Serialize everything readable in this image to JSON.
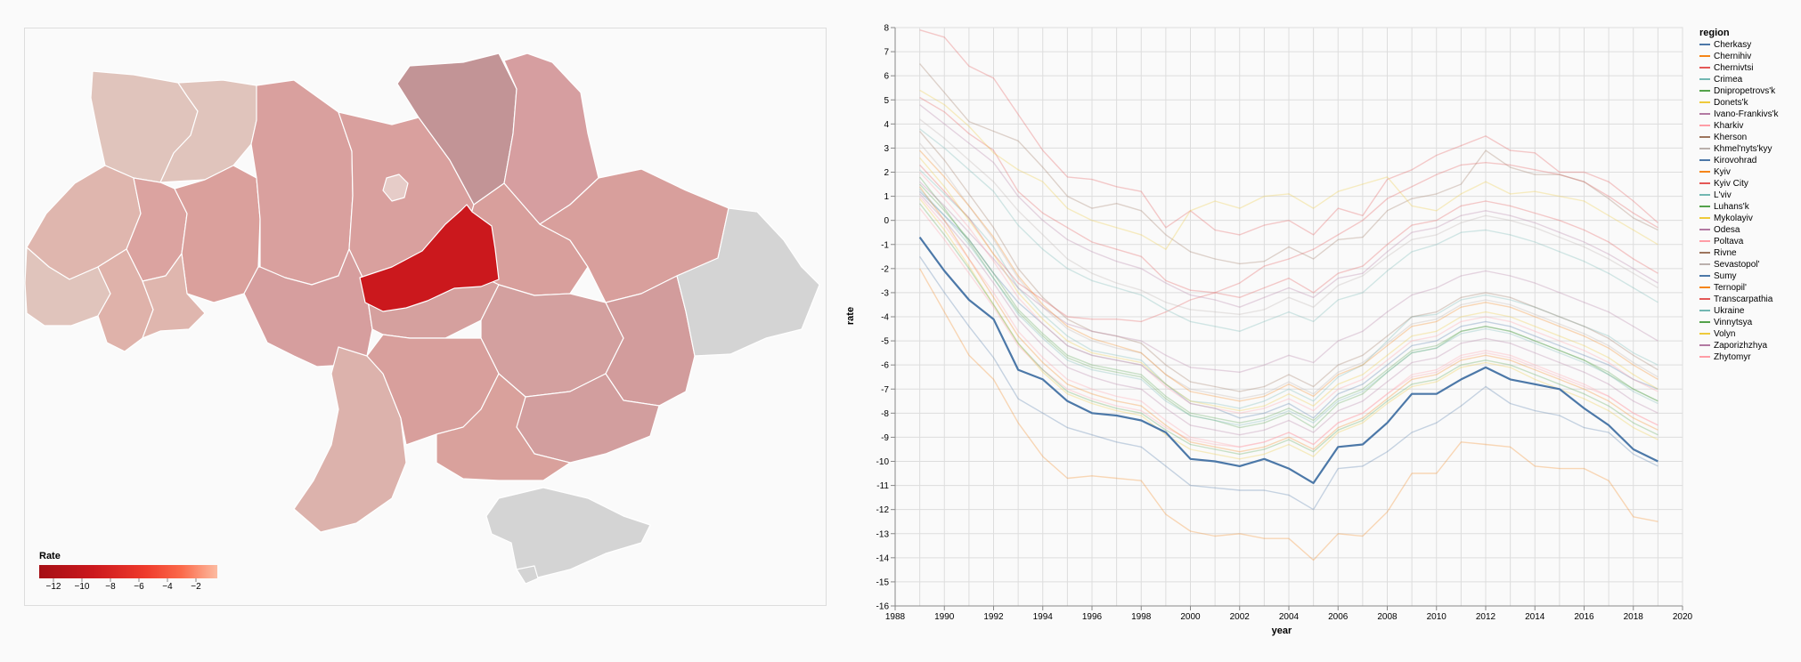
{
  "map": {
    "legend_title": "Rate",
    "legend_ticks": [
      "−12",
      "−10",
      "−8",
      "−6",
      "−4",
      "−2"
    ],
    "colors": {
      "min": "#a50f15",
      "max": "#fcbba1",
      "no_data": "#d4d4d4",
      "highlight": "#cb181d"
    }
  },
  "chart_data": {
    "type": "line",
    "xlabel": "year",
    "ylabel": "rate",
    "xlim": [
      1988,
      2020
    ],
    "ylim": [
      -16,
      8
    ],
    "x_ticks": [
      "1988",
      "1990",
      "1992",
      "1994",
      "1996",
      "1998",
      "2000",
      "2002",
      "2004",
      "2006",
      "2008",
      "2010",
      "2012",
      "2014",
      "2016",
      "2018",
      "2020"
    ],
    "y_ticks": [
      "8",
      "7",
      "6",
      "5",
      "4",
      "3",
      "2",
      "1",
      "0",
      "-1",
      "-2",
      "-3",
      "-4",
      "-5",
      "-6",
      "-7",
      "-8",
      "-9",
      "-10",
      "-11",
      "-12",
      "-13",
      "-14",
      "-15",
      "-16"
    ],
    "grid": true,
    "legend_title": "region",
    "legend_position": "right",
    "highlighted_series": "Kirovohrad",
    "x": [
      1989,
      1990,
      1991,
      1992,
      1993,
      1994,
      1995,
      1996,
      1997,
      1998,
      1999,
      2000,
      2001,
      2002,
      2003,
      2004,
      2005,
      2006,
      2007,
      2008,
      2009,
      2010,
      2011,
      2012,
      2013,
      2014,
      2015,
      2016,
      2017,
      2018,
      2019
    ],
    "series": [
      {
        "name": "Cherkasy",
        "color": "#4c78a8",
        "values": [
          1.2,
          0.2,
          -0.8,
          -2.2,
          -3.4,
          -4.3,
          -5.2,
          -5.6,
          -5.8,
          -6.0,
          -6.8,
          -7.6,
          -7.8,
          -8.2,
          -8.0,
          -7.6,
          -8.2,
          -7.2,
          -6.8,
          -6.0,
          -5.2,
          -5.0,
          -4.4,
          -4.2,
          -4.4,
          -4.8,
          -5.2,
          -5.6,
          -6.0,
          -6.6,
          -7.0
        ]
      },
      {
        "name": "Chernihiv",
        "color": "#f58518",
        "values": [
          -2.0,
          -3.8,
          -5.6,
          -6.6,
          -8.4,
          -9.8,
          -10.7,
          -10.6,
          -10.7,
          -10.8,
          -12.2,
          -12.9,
          -13.1,
          -13.0,
          -13.2,
          -13.2,
          -14.1,
          -13.0,
          -13.1,
          -12.1,
          -10.5,
          -10.5,
          -9.2,
          -9.3,
          -9.4,
          -10.2,
          -10.3,
          -10.3,
          -10.8,
          -12.3,
          -12.5
        ]
      },
      {
        "name": "Chernivtsi",
        "color": "#e45756",
        "values": [
          5.1,
          4.5,
          3.6,
          2.9,
          1.2,
          0.3,
          -0.3,
          -0.9,
          -1.2,
          -1.5,
          -2.5,
          -2.9,
          -3.0,
          -3.2,
          -2.8,
          -2.4,
          -3.0,
          -2.2,
          -1.9,
          -1.0,
          -0.2,
          0.0,
          0.6,
          0.8,
          0.6,
          0.3,
          0.0,
          -0.4,
          -0.9,
          -1.6,
          -2.2
        ]
      },
      {
        "name": "Crimea",
        "color": "#72b7b2",
        "values": [
          2.1,
          1.1,
          0.1,
          -1.1,
          -2.8,
          -3.9,
          -4.8,
          -5.4,
          -5.6,
          -5.8,
          -6.8,
          -7.5,
          -7.6,
          -7.8,
          -7.5,
          -7.0,
          -7.5,
          -6.5,
          -6.0,
          -5.0,
          -4.0,
          -3.9,
          -3.3,
          -3.1,
          -3.3,
          -3.6,
          -4.0,
          -4.4,
          -4.8,
          -5.5,
          -6.0
        ]
      },
      {
        "name": "Dnipropetrovs'k",
        "color": "#54a24b",
        "values": [
          1.8,
          0.5,
          -0.9,
          -2.4,
          -3.8,
          -4.8,
          -5.7,
          -6.1,
          -6.3,
          -6.5,
          -7.4,
          -8.1,
          -8.3,
          -8.6,
          -8.4,
          -8.0,
          -8.6,
          -7.6,
          -7.2,
          -6.3,
          -5.5,
          -5.3,
          -4.6,
          -4.4,
          -4.6,
          -5.0,
          -5.4,
          -5.8,
          -6.4,
          -7.0,
          -7.5
        ]
      },
      {
        "name": "Donets'k",
        "color": "#eeca3b",
        "values": [
          0.9,
          -0.4,
          -1.9,
          -3.5,
          -5.1,
          -6.3,
          -7.2,
          -7.6,
          -7.9,
          -8.1,
          -8.9,
          -9.5,
          -9.7,
          -9.9,
          -9.7,
          -9.3,
          -9.8,
          -8.8,
          -8.4,
          -7.6,
          -6.9,
          -6.7,
          -6.1,
          -5.9,
          -6.1,
          -6.6,
          -7.0,
          -7.4,
          -7.9,
          -8.6,
          -9.1
        ]
      },
      {
        "name": "Ivano-Frankivs'k",
        "color": "#b279a2",
        "values": [
          4.8,
          4.0,
          3.2,
          2.4,
          1.0,
          0.0,
          -0.8,
          -1.3,
          -1.7,
          -2.0,
          -2.6,
          -3.1,
          -3.3,
          -3.6,
          -3.2,
          -2.8,
          -3.2,
          -2.4,
          -2.2,
          -1.3,
          -0.5,
          -0.3,
          0.2,
          0.4,
          0.2,
          -0.1,
          -0.5,
          -0.9,
          -1.4,
          -2.0,
          -2.6
        ]
      },
      {
        "name": "Kharkiv",
        "color": "#ff9da6",
        "values": [
          0.5,
          -0.8,
          -2.2,
          -3.6,
          -5.2,
          -6.2,
          -7.0,
          -7.4,
          -7.7,
          -7.9,
          -8.6,
          -9.1,
          -9.3,
          -9.4,
          -9.2,
          -8.8,
          -9.3,
          -8.4,
          -8.0,
          -7.2,
          -6.5,
          -6.3,
          -5.7,
          -5.5,
          -5.7,
          -6.1,
          -6.5,
          -6.9,
          -7.3,
          -8.0,
          -8.5
        ]
      },
      {
        "name": "Kherson",
        "color": "#9d755d",
        "values": [
          3.7,
          2.5,
          1.1,
          -0.3,
          -2.0,
          -3.2,
          -4.1,
          -4.6,
          -4.8,
          -5.1,
          -6.0,
          -6.7,
          -6.9,
          -7.1,
          -6.9,
          -6.4,
          -6.9,
          -6.0,
          -5.6,
          -4.8,
          -4.0,
          -3.8,
          -3.2,
          -3.0,
          -3.2,
          -3.6,
          -4.0,
          -4.4,
          -4.9,
          -5.6,
          -6.2
        ]
      },
      {
        "name": "Khmel'nyts'kyy",
        "color": "#bab0ac",
        "values": [
          3.2,
          2.0,
          0.6,
          -0.8,
          -2.4,
          -3.6,
          -4.5,
          -5.0,
          -5.3,
          -5.5,
          -6.4,
          -7.0,
          -7.2,
          -7.4,
          -7.2,
          -6.7,
          -7.2,
          -6.3,
          -5.9,
          -5.1,
          -4.3,
          -4.1,
          -3.5,
          -3.3,
          -3.5,
          -3.9,
          -4.3,
          -4.7,
          -5.2,
          -5.9,
          -6.5
        ]
      },
      {
        "name": "Kirovohrad",
        "color": "#4c78a8",
        "values": [
          -0.7,
          -2.1,
          -3.3,
          -4.1,
          -6.2,
          -6.6,
          -7.5,
          -8.0,
          -8.1,
          -8.3,
          -8.8,
          -9.9,
          -10.0,
          -10.2,
          -9.9,
          -10.3,
          -10.9,
          -9.4,
          -9.3,
          -8.4,
          -7.2,
          -7.2,
          -6.6,
          -6.1,
          -6.6,
          -6.8,
          -7.0,
          -7.8,
          -8.5,
          -9.5,
          -10.0
        ]
      },
      {
        "name": "Kyiv",
        "color": "#f58518",
        "values": [
          1.4,
          0.0,
          -1.6,
          -3.2,
          -4.8,
          -5.9,
          -6.8,
          -7.2,
          -7.5,
          -7.7,
          -8.5,
          -9.2,
          -9.4,
          -9.6,
          -9.4,
          -9.0,
          -9.5,
          -8.6,
          -8.2,
          -7.4,
          -6.6,
          -6.4,
          -5.8,
          -5.6,
          -5.8,
          -6.2,
          -6.6,
          -7.0,
          -7.5,
          -8.2,
          -8.7
        ]
      },
      {
        "name": "Kyiv City",
        "color": "#e45756",
        "values": [
          2.3,
          1.2,
          0.1,
          -1.4,
          -2.6,
          -3.3,
          -4.0,
          -4.1,
          -4.1,
          -4.2,
          -3.8,
          -3.3,
          -3.0,
          -2.6,
          -1.9,
          -1.6,
          -1.2,
          -0.6,
          0.0,
          0.9,
          1.4,
          1.9,
          2.3,
          2.4,
          2.3,
          2.1,
          1.9,
          1.6,
          1.0,
          0.3,
          -0.3
        ]
      },
      {
        "name": "L'viv",
        "color": "#72b7b2",
        "values": [
          3.8,
          3.0,
          2.1,
          1.2,
          -0.2,
          -1.2,
          -2.0,
          -2.5,
          -2.8,
          -3.1,
          -3.7,
          -4.2,
          -4.4,
          -4.6,
          -4.2,
          -3.8,
          -4.2,
          -3.3,
          -3.0,
          -2.1,
          -1.3,
          -1.0,
          -0.5,
          -0.4,
          -0.6,
          -0.9,
          -1.3,
          -1.7,
          -2.2,
          -2.8,
          -3.4
        ]
      },
      {
        "name": "Luhans'k",
        "color": "#54a24b",
        "values": [
          0.7,
          -0.6,
          -2.0,
          -3.5,
          -5.1,
          -6.2,
          -7.1,
          -7.5,
          -7.8,
          -8.0,
          -8.7,
          -9.3,
          -9.5,
          -9.7,
          -9.5,
          -9.1,
          -9.6,
          -8.7,
          -8.3,
          -7.5,
          -6.8,
          -6.6,
          -6.0,
          -5.8,
          -6.0,
          -6.4,
          -6.8,
          -7.2,
          -7.7,
          -8.4,
          -8.9
        ]
      },
      {
        "name": "Mykolayiv",
        "color": "#eeca3b",
        "values": [
          2.6,
          1.4,
          0.0,
          -1.4,
          -3.0,
          -4.1,
          -5.0,
          -5.5,
          -5.7,
          -5.9,
          -6.8,
          -7.5,
          -7.7,
          -7.9,
          -7.7,
          -7.2,
          -7.7,
          -6.8,
          -6.4,
          -5.6,
          -4.8,
          -4.6,
          -4.0,
          -3.8,
          -4.0,
          -4.4,
          -4.8,
          -5.2,
          -5.7,
          -6.4,
          -7.0
        ]
      },
      {
        "name": "Odesa",
        "color": "#b279a2",
        "values": [
          1.6,
          0.6,
          -0.5,
          -1.6,
          -2.8,
          -3.6,
          -4.3,
          -4.6,
          -4.8,
          -5.0,
          -5.6,
          -6.1,
          -6.2,
          -6.3,
          -6.0,
          -5.6,
          -5.9,
          -5.0,
          -4.6,
          -3.8,
          -3.1,
          -2.8,
          -2.3,
          -2.1,
          -2.3,
          -2.6,
          -3.0,
          -3.4,
          -3.8,
          -4.4,
          -5.0
        ]
      },
      {
        "name": "Poltava",
        "color": "#ff9da6",
        "values": [
          1.0,
          -0.2,
          -1.6,
          -3.0,
          -4.6,
          -5.7,
          -6.6,
          -7.0,
          -7.3,
          -7.5,
          -8.3,
          -9.0,
          -9.2,
          -9.4,
          -9.2,
          -8.8,
          -9.3,
          -8.4,
          -8.0,
          -7.2,
          -6.4,
          -6.2,
          -5.6,
          -5.4,
          -5.6,
          -6.0,
          -6.4,
          -6.8,
          -7.3,
          -8.0,
          -8.5
        ]
      },
      {
        "name": "Rivne",
        "color": "#9d755d",
        "values": [
          6.5,
          5.3,
          4.1,
          3.7,
          3.3,
          2.2,
          1.0,
          0.5,
          0.7,
          0.4,
          -0.6,
          -1.3,
          -1.6,
          -1.8,
          -1.7,
          -1.1,
          -1.6,
          -0.8,
          -0.7,
          0.4,
          0.9,
          1.1,
          1.5,
          2.9,
          2.2,
          1.9,
          1.9,
          1.6,
          0.9,
          0.1,
          -0.4
        ]
      },
      {
        "name": "Sevastopol'",
        "color": "#bab0ac",
        "values": [
          4.2,
          3.4,
          2.5,
          1.6,
          0.4,
          -0.6,
          -1.6,
          -2.2,
          -2.6,
          -2.9,
          -3.4,
          -3.7,
          -3.8,
          -3.9,
          -3.7,
          -3.2,
          -3.6,
          -2.7,
          -2.3,
          -1.5,
          -0.8,
          -0.6,
          -0.1,
          0.2,
          0.0,
          -0.3,
          -0.7,
          -1.1,
          -1.6,
          -2.2,
          -2.8
        ]
      },
      {
        "name": "Sumy",
        "color": "#4c78a8",
        "values": [
          -1.5,
          -3.0,
          -4.4,
          -5.7,
          -7.4,
          -8.0,
          -8.6,
          -8.9,
          -9.2,
          -9.4,
          -10.2,
          -11.0,
          -11.1,
          -11.2,
          -11.2,
          -11.4,
          -12.0,
          -10.3,
          -10.2,
          -9.6,
          -8.8,
          -8.4,
          -7.7,
          -6.9,
          -7.6,
          -7.9,
          -8.1,
          -8.6,
          -8.8,
          -9.7,
          -10.2
        ]
      },
      {
        "name": "Ternopil'",
        "color": "#f58518",
        "values": [
          2.9,
          1.8,
          0.6,
          -0.7,
          -2.3,
          -3.5,
          -4.4,
          -4.9,
          -5.2,
          -5.5,
          -6.4,
          -7.1,
          -7.3,
          -7.5,
          -7.3,
          -6.8,
          -7.3,
          -6.4,
          -6.0,
          -5.2,
          -4.4,
          -4.2,
          -3.6,
          -3.4,
          -3.6,
          -4.0,
          -4.4,
          -4.8,
          -5.3,
          -6.0,
          -6.6
        ]
      },
      {
        "name": "Transcarpathia",
        "color": "#e45756",
        "values": [
          7.9,
          7.6,
          6.4,
          5.9,
          4.4,
          2.9,
          1.8,
          1.7,
          1.4,
          1.2,
          -0.3,
          0.4,
          -0.4,
          -0.6,
          -0.2,
          0.0,
          -0.6,
          0.5,
          0.2,
          1.7,
          2.1,
          2.7,
          3.1,
          3.5,
          2.9,
          2.8,
          2.0,
          2.0,
          1.6,
          0.8,
          -0.1
        ]
      },
      {
        "name": "Ukraine",
        "color": "#72b7b2",
        "values": [
          1.3,
          0.2,
          -1.0,
          -2.4,
          -3.9,
          -4.9,
          -5.8,
          -6.2,
          -6.4,
          -6.6,
          -7.5,
          -8.1,
          -8.3,
          -8.5,
          -8.3,
          -7.9,
          -8.4,
          -7.5,
          -7.1,
          -6.3,
          -5.5,
          -5.3,
          -4.7,
          -4.5,
          -4.7,
          -5.1,
          -5.5,
          -5.9,
          -6.4,
          -7.1,
          -7.6
        ]
      },
      {
        "name": "Vinnytsya",
        "color": "#54a24b",
        "values": [
          1.5,
          0.4,
          -0.8,
          -2.2,
          -3.7,
          -4.7,
          -5.6,
          -6.0,
          -6.2,
          -6.4,
          -7.3,
          -8.0,
          -8.2,
          -8.4,
          -8.2,
          -7.8,
          -8.3,
          -7.4,
          -7.0,
          -6.2,
          -5.4,
          -5.2,
          -4.6,
          -4.4,
          -4.6,
          -5.0,
          -5.4,
          -5.8,
          -6.3,
          -7.0,
          -7.5
        ]
      },
      {
        "name": "Volyn",
        "color": "#eeca3b",
        "values": [
          5.4,
          4.8,
          3.9,
          2.8,
          2.1,
          1.6,
          0.5,
          0.0,
          -0.3,
          -0.6,
          -1.2,
          0.4,
          0.8,
          0.5,
          1.0,
          1.1,
          0.5,
          1.2,
          1.5,
          1.8,
          0.6,
          0.4,
          1.1,
          1.6,
          1.1,
          1.2,
          1.0,
          0.8,
          0.2,
          -0.4,
          -1.0
        ]
      },
      {
        "name": "Zaporizhzhya",
        "color": "#b279a2",
        "values": [
          1.1,
          0.0,
          -1.2,
          -2.6,
          -4.1,
          -5.2,
          -6.1,
          -6.5,
          -6.8,
          -7.0,
          -7.8,
          -8.5,
          -8.7,
          -8.9,
          -8.7,
          -8.3,
          -8.8,
          -7.9,
          -7.5,
          -6.7,
          -5.9,
          -5.7,
          -5.1,
          -4.9,
          -5.1,
          -5.5,
          -5.9,
          -6.3,
          -6.8,
          -7.5,
          -8.0
        ]
      },
      {
        "name": "Zhytomyr",
        "color": "#ff9da6",
        "values": [
          2.0,
          0.9,
          -0.3,
          -1.7,
          -3.2,
          -4.3,
          -5.2,
          -5.6,
          -5.8,
          -6.0,
          -6.9,
          -7.6,
          -7.8,
          -8.0,
          -7.8,
          -7.4,
          -7.9,
          -7.0,
          -6.6,
          -5.8,
          -5.0,
          -4.8,
          -4.2,
          -4.0,
          -4.2,
          -4.6,
          -5.0,
          -5.4,
          -5.9,
          -6.6,
          -7.1
        ]
      }
    ]
  }
}
